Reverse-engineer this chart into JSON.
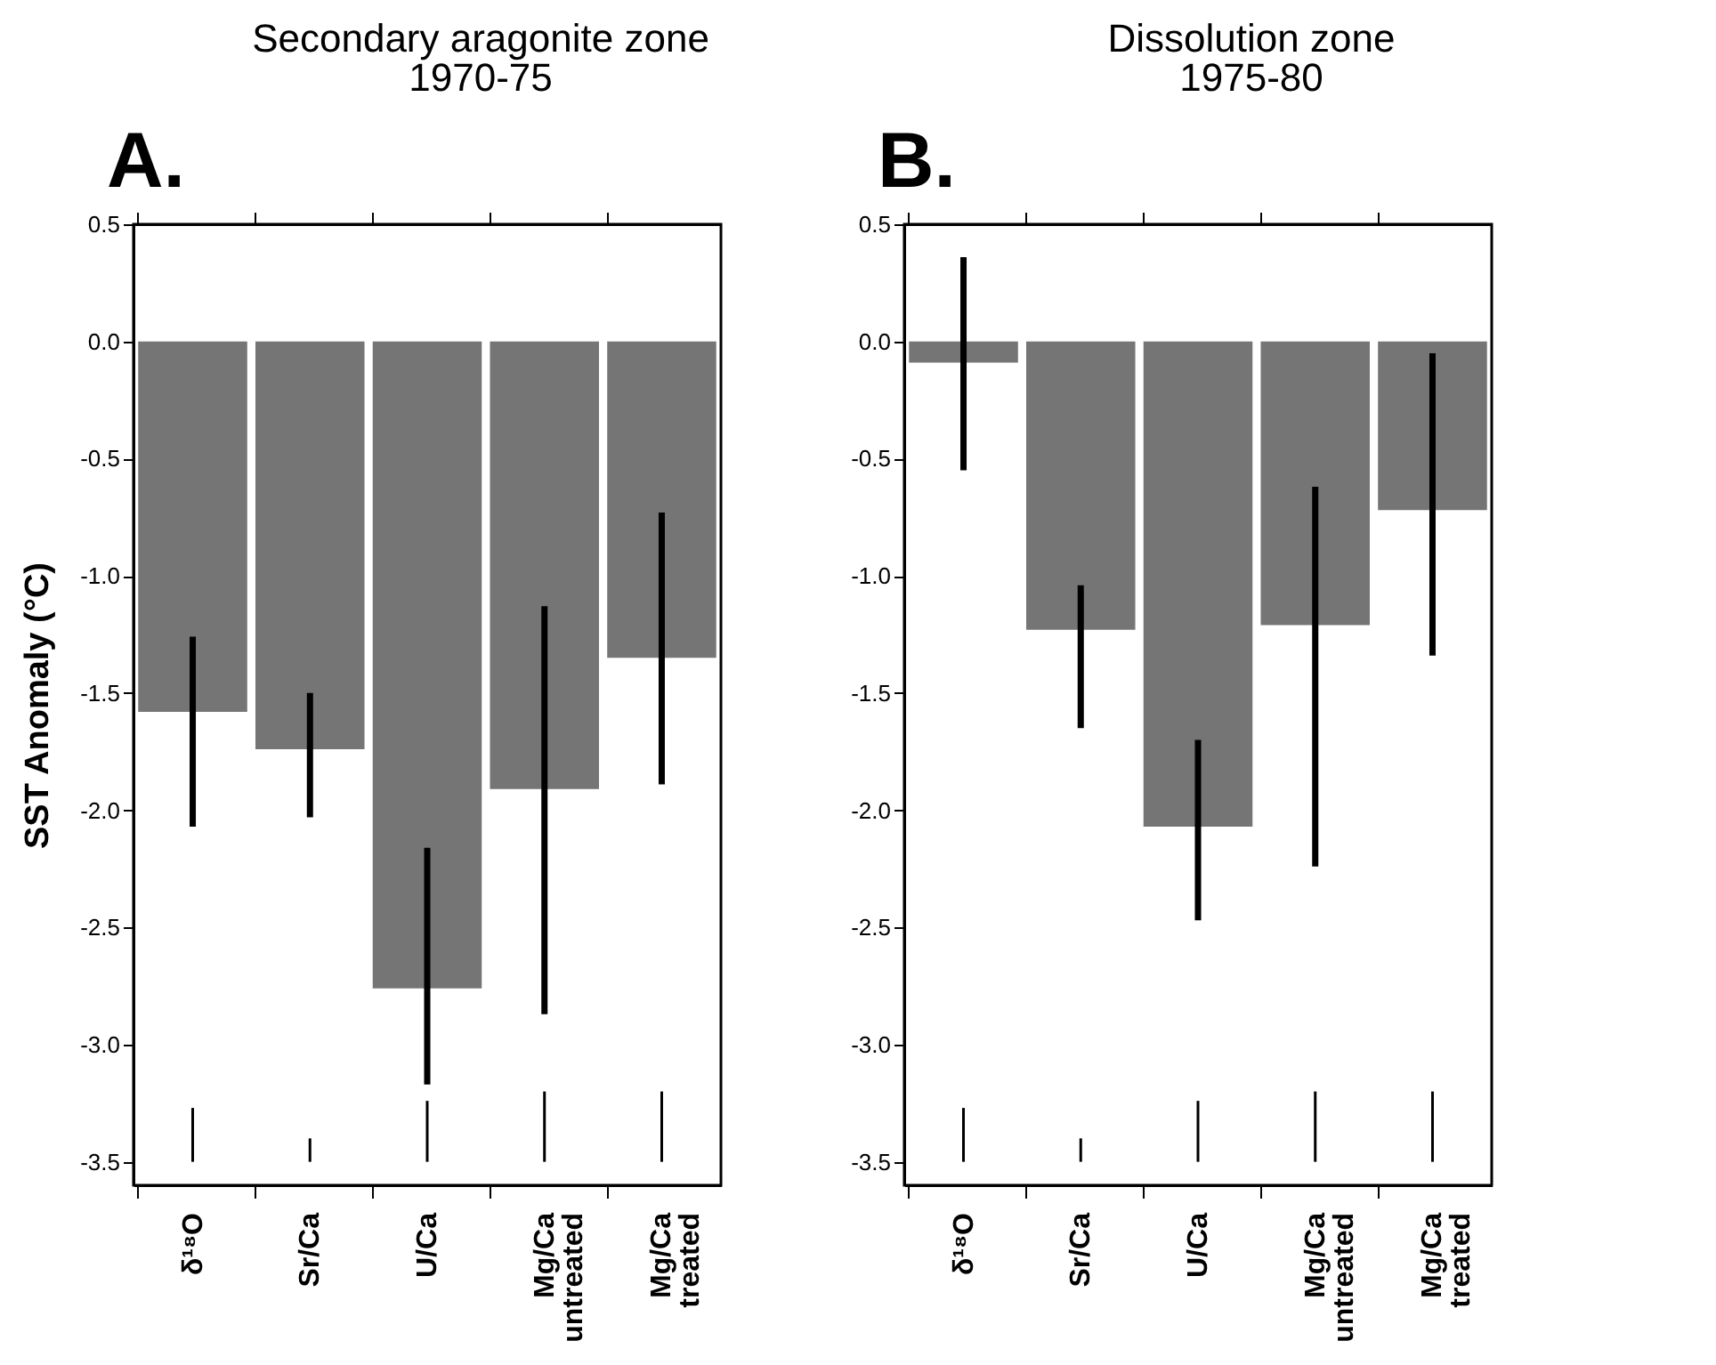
{
  "chart_data": [
    {
      "type": "bar",
      "title": "Secondary aragonite zone\n1970-75",
      "ylabel": "SST Anomaly (°C)",
      "annotations": [
        "A."
      ],
      "categories": [
        "δ¹⁸O",
        "Sr/Ca",
        "U/Ca",
        "Mg/Ca\nuntreated",
        "Mg/Ca\ntreated"
      ],
      "series": [
        {
          "color": "#757575",
          "values": [
            -1.58,
            -1.74,
            -2.76,
            -1.91,
            -1.35
          ],
          "errors": [
            [
              -2.07,
              -1.26
            ],
            [
              -2.03,
              -1.5
            ],
            [
              -3.17,
              -2.16
            ],
            [
              -2.87,
              -1.13
            ],
            [
              -1.89,
              -0.73
            ]
          ]
        },
        {
          "type": "bar",
          "color": "#000000",
          "base": [
            -3.5,
            -3.5,
            -3.5,
            -3.5,
            -3.5
          ],
          "values": [
            0.23,
            0.1,
            0.26,
            0.3,
            0.3
          ]
        }
      ],
      "ylim": [
        -3.6,
        0.5
      ],
      "yticks": [
        0.5,
        {
          "value": 0,
          "label": "0.0"
        },
        -0.5,
        {
          "value": -1,
          "label": "-1.0"
        },
        -1.5,
        {
          "value": -2,
          "label": "-2.0"
        },
        -2.5,
        {
          "value": -3,
          "label": "-3.0"
        },
        -3.5
      ]
    },
    {
      "type": "bar",
      "title": "Dissolution zone\n1975-80",
      "annotations": [
        "B."
      ],
      "categories": [
        "δ¹⁸O",
        "Sr/Ca",
        "U/Ca",
        "Mg/Ca\nuntreated",
        "Mg/Ca\ntreated"
      ],
      "series": [
        {
          "color": "#757575",
          "values": [
            -0.09,
            -1.23,
            -2.07,
            -1.21,
            -0.72
          ],
          "errors": [
            [
              -0.55,
              0.36
            ],
            [
              -1.65,
              -1.04
            ],
            [
              -2.47,
              -1.7
            ],
            [
              -2.24,
              -0.62
            ],
            [
              -1.34,
              -0.05
            ]
          ]
        },
        {
          "type": "bar",
          "color": "#000000",
          "base": [
            -3.5,
            -3.5,
            -3.5,
            -3.5,
            -3.5
          ],
          "values": [
            0.23,
            0.1,
            0.26,
            0.3,
            0.3
          ]
        }
      ],
      "ylim": [
        -3.6,
        0.5
      ],
      "yticks": [
        0.5,
        {
          "value": 0,
          "label": "0.0"
        },
        -0.5,
        {
          "value": -1,
          "label": "-1.0"
        },
        -1.5,
        {
          "value": -2,
          "label": "-2.0"
        },
        -2.5,
        {
          "value": -3,
          "label": "-3.0"
        },
        -3.5
      ]
    }
  ]
}
